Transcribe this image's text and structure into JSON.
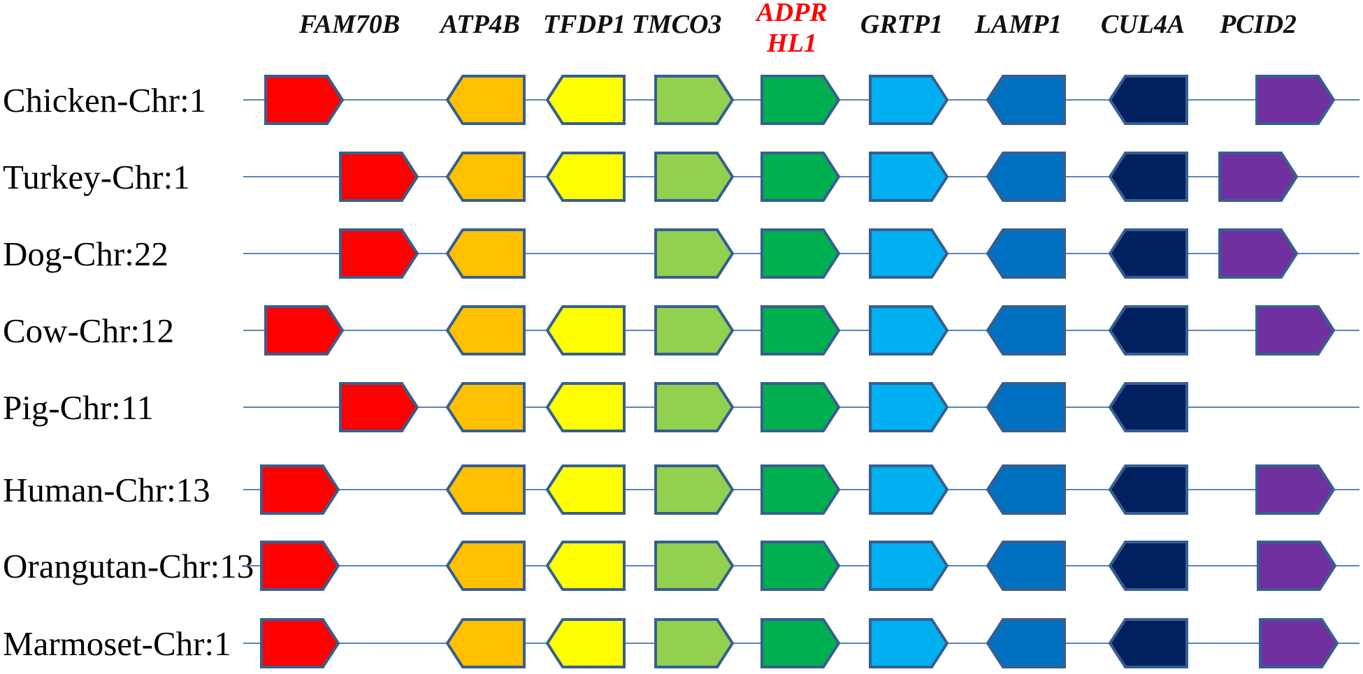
{
  "diagram": {
    "genes": [
      {
        "id": "FAM70B",
        "label_lines": [
          "FAM70B"
        ],
        "color": "#ff0000",
        "highlight": false
      },
      {
        "id": "ATP4B",
        "label_lines": [
          "ATP4B"
        ],
        "color": "#ffc000",
        "highlight": false
      },
      {
        "id": "TFDP1",
        "label_lines": [
          "TFDP1"
        ],
        "color": "#ffff00",
        "highlight": false
      },
      {
        "id": "TMCO3",
        "label_lines": [
          "TMCO3"
        ],
        "color": "#92d050",
        "highlight": false
      },
      {
        "id": "ADPRHL1",
        "label_lines": [
          "ADPR",
          "HL1"
        ],
        "color": "#00b050",
        "highlight": true,
        "highlight_color": "#ff0000"
      },
      {
        "id": "GRTP1",
        "label_lines": [
          "GRTP1"
        ],
        "color": "#00b0f0",
        "highlight": false
      },
      {
        "id": "LAMP1",
        "label_lines": [
          "LAMP1"
        ],
        "color": "#0070c0",
        "highlight": false
      },
      {
        "id": "CUL4A",
        "label_lines": [
          "CUL4A"
        ],
        "color": "#002060",
        "highlight": false
      },
      {
        "id": "PCID2",
        "label_lines": [
          "PCID2"
        ],
        "color": "#7030a0",
        "highlight": false
      }
    ],
    "species": [
      {
        "name": "Chicken-Chr:1",
        "genes": [
          {
            "gene": "FAM70B",
            "direction": "right"
          },
          {
            "gene": "ATP4B",
            "direction": "left"
          },
          {
            "gene": "TFDP1",
            "direction": "left"
          },
          {
            "gene": "TMCO3",
            "direction": "right"
          },
          {
            "gene": "ADPRHL1",
            "direction": "right"
          },
          {
            "gene": "GRTP1",
            "direction": "right"
          },
          {
            "gene": "LAMP1",
            "direction": "left"
          },
          {
            "gene": "CUL4A",
            "direction": "left"
          },
          {
            "gene": "PCID2",
            "direction": "right"
          }
        ]
      },
      {
        "name": "Turkey-Chr:1",
        "genes": [
          {
            "gene": "FAM70B",
            "direction": "right"
          },
          {
            "gene": "ATP4B",
            "direction": "left"
          },
          {
            "gene": "TFDP1",
            "direction": "left"
          },
          {
            "gene": "TMCO3",
            "direction": "right"
          },
          {
            "gene": "ADPRHL1",
            "direction": "right"
          },
          {
            "gene": "GRTP1",
            "direction": "right"
          },
          {
            "gene": "LAMP1",
            "direction": "left"
          },
          {
            "gene": "CUL4A",
            "direction": "left"
          },
          {
            "gene": "PCID2",
            "direction": "right"
          }
        ]
      },
      {
        "name": "Dog-Chr:22",
        "genes": [
          {
            "gene": "FAM70B",
            "direction": "right"
          },
          {
            "gene": "ATP4B",
            "direction": "left"
          },
          {
            "gene": "TMCO3",
            "direction": "right"
          },
          {
            "gene": "ADPRHL1",
            "direction": "right"
          },
          {
            "gene": "GRTP1",
            "direction": "right"
          },
          {
            "gene": "LAMP1",
            "direction": "left"
          },
          {
            "gene": "CUL4A",
            "direction": "left"
          },
          {
            "gene": "PCID2",
            "direction": "right"
          }
        ]
      },
      {
        "name": "Cow-Chr:12",
        "genes": [
          {
            "gene": "FAM70B",
            "direction": "right"
          },
          {
            "gene": "ATP4B",
            "direction": "left"
          },
          {
            "gene": "TFDP1",
            "direction": "left"
          },
          {
            "gene": "TMCO3",
            "direction": "right"
          },
          {
            "gene": "ADPRHL1",
            "direction": "right"
          },
          {
            "gene": "GRTP1",
            "direction": "right"
          },
          {
            "gene": "LAMP1",
            "direction": "left"
          },
          {
            "gene": "CUL4A",
            "direction": "left"
          },
          {
            "gene": "PCID2",
            "direction": "right"
          }
        ]
      },
      {
        "name": "Pig-Chr:11",
        "genes": [
          {
            "gene": "FAM70B",
            "direction": "right"
          },
          {
            "gene": "ATP4B",
            "direction": "left"
          },
          {
            "gene": "TFDP1",
            "direction": "left"
          },
          {
            "gene": "TMCO3",
            "direction": "right"
          },
          {
            "gene": "ADPRHL1",
            "direction": "right"
          },
          {
            "gene": "GRTP1",
            "direction": "right"
          },
          {
            "gene": "LAMP1",
            "direction": "left"
          },
          {
            "gene": "CUL4A",
            "direction": "left"
          }
        ]
      },
      {
        "name": "Human-Chr:13",
        "genes": [
          {
            "gene": "FAM70B",
            "direction": "right"
          },
          {
            "gene": "ATP4B",
            "direction": "left"
          },
          {
            "gene": "TFDP1",
            "direction": "left"
          },
          {
            "gene": "TMCO3",
            "direction": "right"
          },
          {
            "gene": "ADPRHL1",
            "direction": "right"
          },
          {
            "gene": "GRTP1",
            "direction": "right"
          },
          {
            "gene": "LAMP1",
            "direction": "left"
          },
          {
            "gene": "CUL4A",
            "direction": "left"
          },
          {
            "gene": "PCID2",
            "direction": "right"
          }
        ]
      },
      {
        "name": "Orangutan-Chr:13",
        "genes": [
          {
            "gene": "FAM70B",
            "direction": "right"
          },
          {
            "gene": "ATP4B",
            "direction": "left"
          },
          {
            "gene": "TFDP1",
            "direction": "left"
          },
          {
            "gene": "TMCO3",
            "direction": "right"
          },
          {
            "gene": "ADPRHL1",
            "direction": "right"
          },
          {
            "gene": "GRTP1",
            "direction": "right"
          },
          {
            "gene": "LAMP1",
            "direction": "left"
          },
          {
            "gene": "CUL4A",
            "direction": "left"
          },
          {
            "gene": "PCID2",
            "direction": "right"
          }
        ]
      },
      {
        "name": "Marmoset-Chr:1",
        "genes": [
          {
            "gene": "FAM70B",
            "direction": "right"
          },
          {
            "gene": "ATP4B",
            "direction": "left"
          },
          {
            "gene": "TFDP1",
            "direction": "left"
          },
          {
            "gene": "TMCO3",
            "direction": "right"
          },
          {
            "gene": "ADPRHL1",
            "direction": "right"
          },
          {
            "gene": "GRTP1",
            "direction": "right"
          },
          {
            "gene": "LAMP1",
            "direction": "left"
          },
          {
            "gene": "CUL4A",
            "direction": "left"
          },
          {
            "gene": "PCID2",
            "direction": "right"
          }
        ]
      }
    ]
  }
}
